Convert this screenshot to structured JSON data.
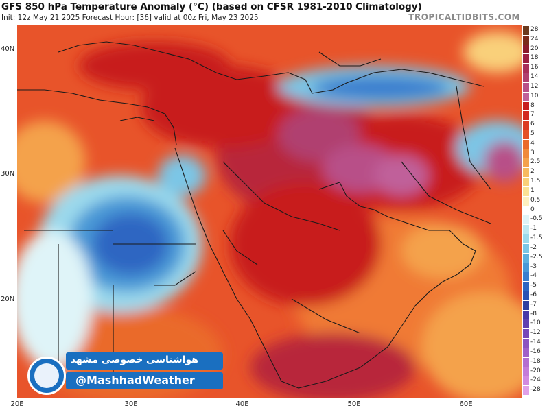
{
  "header": {
    "title": "GFS 850 hPa Temperature Anomaly (°C) (based on CFSR 1981-2010 Climatology)",
    "subtitle": "Init: 12z May 21 2025   Forecast Hour: [36]   valid at 00z Fri, May 23 2025",
    "brand": "TROPICALTIDBITS.COM"
  },
  "axes": {
    "lat_ticks": [
      "40N",
      "30N",
      "20N"
    ],
    "lon_ticks": [
      "20E",
      "30E",
      "40E",
      "50E",
      "60E"
    ]
  },
  "colorbar": {
    "levels": [
      "28",
      "24",
      "20",
      "18",
      "16",
      "14",
      "12",
      "10",
      "8",
      "7",
      "6",
      "5",
      "4",
      "3",
      "2.5",
      "2",
      "1.5",
      "1",
      "0.5",
      "0",
      "-0.5",
      "-1",
      "-1.5",
      "-2",
      "-2.5",
      "-3",
      "-4",
      "-5",
      "-6",
      "-7",
      "-8",
      "-10",
      "-12",
      "-14",
      "-16",
      "-18",
      "-20",
      "-24",
      "-28"
    ],
    "colors": [
      "#6b3a1e",
      "#7a2a1a",
      "#8b1a2a",
      "#9c2040",
      "#a8305a",
      "#b04070",
      "#b85088",
      "#c0609a",
      "#c81e1e",
      "#d22a20",
      "#dc3a22",
      "#e45026",
      "#ea6a2c",
      "#f08a3a",
      "#f4a24c",
      "#f7ba60",
      "#f9d07a",
      "#fbe296",
      "#fdf0c0",
      "#ffffff",
      "#dff4f8",
      "#bde8f2",
      "#9bd9ec",
      "#7bc6e6",
      "#5eb0de",
      "#4a98d6",
      "#3a7ece",
      "#2e66c2",
      "#2a52b4",
      "#3040a0",
      "#4a3aa8",
      "#6040b0",
      "#7648b8",
      "#8c54c0",
      "#a060c8",
      "#b46ed0",
      "#c47cd8",
      "#d28ae0",
      "#e0a0e8"
    ]
  },
  "banner": {
    "persian_title": "هواشناسی خصوصی مشهد",
    "handle": "@MashhadWeather"
  }
}
